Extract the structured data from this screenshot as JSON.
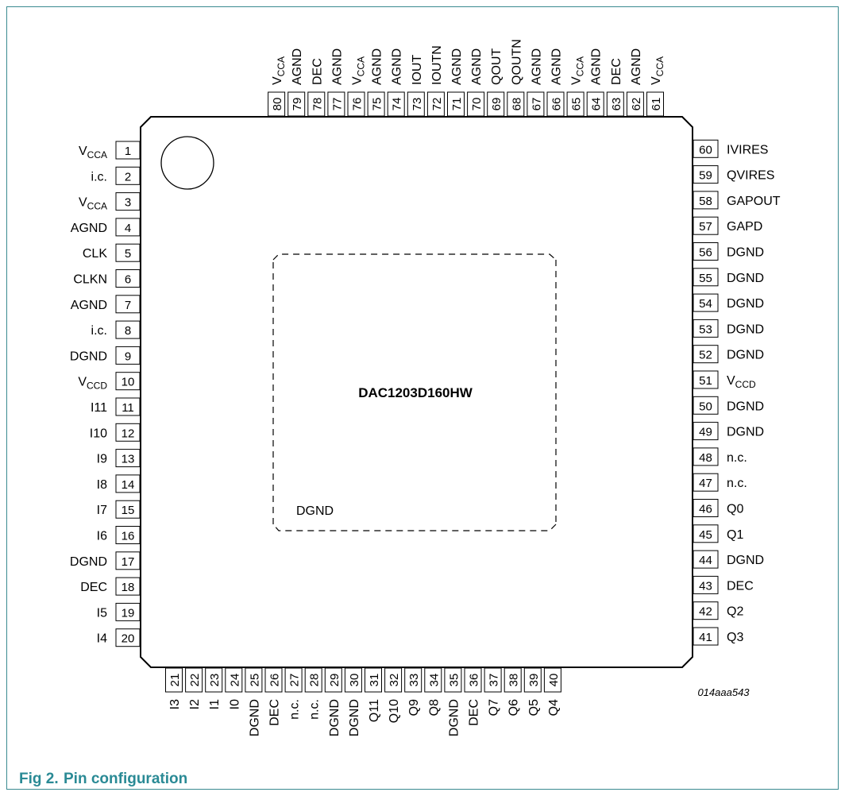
{
  "chip": {
    "name": "DAC1203D160HW",
    "center_label": "DGND",
    "figure_code": "014aaa543"
  },
  "caption": {
    "number": "Fig 2.",
    "title": "Pin configuration"
  },
  "pins": {
    "left": [
      {
        "num": "1",
        "base": "V",
        "sub": "CCA"
      },
      {
        "num": "2",
        "name": "i.c."
      },
      {
        "num": "3",
        "base": "V",
        "sub": "CCA"
      },
      {
        "num": "4",
        "name": "AGND"
      },
      {
        "num": "5",
        "name": "CLK"
      },
      {
        "num": "6",
        "name": "CLKN"
      },
      {
        "num": "7",
        "name": "AGND"
      },
      {
        "num": "8",
        "name": "i.c."
      },
      {
        "num": "9",
        "name": "DGND"
      },
      {
        "num": "10",
        "base": "V",
        "sub": "CCD"
      },
      {
        "num": "11",
        "name": "I11"
      },
      {
        "num": "12",
        "name": "I10"
      },
      {
        "num": "13",
        "name": "I9"
      },
      {
        "num": "14",
        "name": "I8"
      },
      {
        "num": "15",
        "name": "I7"
      },
      {
        "num": "16",
        "name": "I6"
      },
      {
        "num": "17",
        "name": "DGND"
      },
      {
        "num": "18",
        "name": "DEC"
      },
      {
        "num": "19",
        "name": "I5"
      },
      {
        "num": "20",
        "name": "I4"
      }
    ],
    "bottom": [
      {
        "num": "21",
        "name": "I3"
      },
      {
        "num": "22",
        "name": "I2"
      },
      {
        "num": "23",
        "name": "I1"
      },
      {
        "num": "24",
        "name": "I0"
      },
      {
        "num": "25",
        "name": "DGND"
      },
      {
        "num": "26",
        "name": "DEC"
      },
      {
        "num": "27",
        "name": "n.c."
      },
      {
        "num": "28",
        "name": "n.c."
      },
      {
        "num": "29",
        "name": "DGND"
      },
      {
        "num": "30",
        "name": "DGND"
      },
      {
        "num": "31",
        "name": "Q11"
      },
      {
        "num": "32",
        "name": "Q10"
      },
      {
        "num": "33",
        "name": "Q9"
      },
      {
        "num": "34",
        "name": "Q8"
      },
      {
        "num": "35",
        "name": "DGND"
      },
      {
        "num": "36",
        "name": "DEC"
      },
      {
        "num": "37",
        "name": "Q7"
      },
      {
        "num": "38",
        "name": "Q6"
      },
      {
        "num": "39",
        "name": "Q5"
      },
      {
        "num": "40",
        "name": "Q4"
      }
    ],
    "right": [
      {
        "num": "41",
        "name": "Q3"
      },
      {
        "num": "42",
        "name": "Q2"
      },
      {
        "num": "43",
        "name": "DEC"
      },
      {
        "num": "44",
        "name": "DGND"
      },
      {
        "num": "45",
        "name": "Q1"
      },
      {
        "num": "46",
        "name": "Q0"
      },
      {
        "num": "47",
        "name": "n.c."
      },
      {
        "num": "48",
        "name": "n.c."
      },
      {
        "num": "49",
        "name": "DGND"
      },
      {
        "num": "50",
        "name": "DGND"
      },
      {
        "num": "51",
        "base": "V",
        "sub": "CCD"
      },
      {
        "num": "52",
        "name": "DGND"
      },
      {
        "num": "53",
        "name": "DGND"
      },
      {
        "num": "54",
        "name": "DGND"
      },
      {
        "num": "55",
        "name": "DGND"
      },
      {
        "num": "56",
        "name": "DGND"
      },
      {
        "num": "57",
        "name": "GAPD"
      },
      {
        "num": "58",
        "name": "GAPOUT"
      },
      {
        "num": "59",
        "name": "QVIRES"
      },
      {
        "num": "60",
        "name": "IVIRES"
      }
    ],
    "top": [
      {
        "num": "61",
        "base": "V",
        "sub": "CCA"
      },
      {
        "num": "62",
        "name": "AGND"
      },
      {
        "num": "63",
        "name": "DEC"
      },
      {
        "num": "64",
        "name": "AGND"
      },
      {
        "num": "65",
        "base": "V",
        "sub": "CCA"
      },
      {
        "num": "66",
        "name": "AGND"
      },
      {
        "num": "67",
        "name": "AGND"
      },
      {
        "num": "68",
        "name": "QOUTN"
      },
      {
        "num": "69",
        "name": "QOUT"
      },
      {
        "num": "70",
        "name": "AGND"
      },
      {
        "num": "71",
        "name": "AGND"
      },
      {
        "num": "72",
        "name": "IOUTN"
      },
      {
        "num": "73",
        "name": "IOUT"
      },
      {
        "num": "74",
        "name": "AGND"
      },
      {
        "num": "75",
        "name": "AGND"
      },
      {
        "num": "76",
        "base": "V",
        "sub": "CCA"
      },
      {
        "num": "77",
        "name": "AGND"
      },
      {
        "num": "78",
        "name": "DEC"
      },
      {
        "num": "79",
        "name": "AGND"
      },
      {
        "num": "80",
        "base": "V",
        "sub": "CCA"
      }
    ]
  }
}
